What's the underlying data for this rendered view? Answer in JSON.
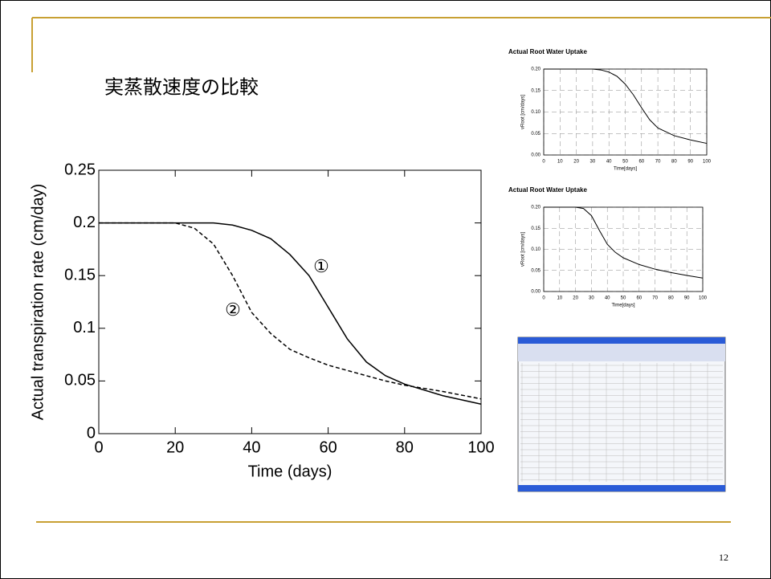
{
  "slide": {
    "title": "実蒸散速度の比較",
    "page_number": "12"
  },
  "chart_data": [
    {
      "type": "line",
      "ylabel": "Actual transpiration rate (cm/day)",
      "xlabel": "Time (days)",
      "annotations": [
        "①",
        "②"
      ],
      "xlim": [
        0,
        100
      ],
      "xticks": [
        0,
        20,
        40,
        60,
        80,
        100
      ],
      "ylim": [
        0,
        0.25
      ],
      "yticks": [
        0,
        0.05,
        0.1,
        0.15,
        0.2,
        0.25
      ],
      "grid": false,
      "x": [
        0,
        10,
        20,
        25,
        30,
        35,
        40,
        45,
        50,
        55,
        60,
        65,
        70,
        75,
        80,
        90,
        100
      ],
      "series": [
        {
          "color": "#000000",
          "line_style": "solid",
          "values": [
            0.2,
            0.2,
            0.2,
            0.2,
            0.2,
            0.198,
            0.193,
            0.185,
            0.17,
            0.15,
            0.12,
            0.09,
            0.068,
            0.055,
            0.047,
            0.036,
            0.028
          ]
        },
        {
          "color": "#000000",
          "line_style": "dashed",
          "values": [
            0.2,
            0.2,
            0.2,
            0.195,
            0.18,
            0.15,
            0.115,
            0.095,
            0.08,
            0.072,
            0.065,
            0.06,
            0.055,
            0.05,
            0.046,
            0.04,
            0.033
          ]
        }
      ]
    },
    {
      "type": "line",
      "title": "Actual Root Water Uptake",
      "ylabel": "vRoot [cm/days]",
      "xlabel": "Time[days]",
      "xlim": [
        0,
        100
      ],
      "xticks": [
        0,
        10,
        20,
        30,
        40,
        50,
        60,
        70,
        80,
        90,
        100
      ],
      "ylim": [
        0,
        0.2
      ],
      "yticks": [
        {
          "value": 0,
          "label": "0.00"
        },
        {
          "value": 0.05,
          "label": "0.05"
        },
        {
          "value": 0.1,
          "label": "0.10"
        },
        {
          "value": 0.15,
          "label": "0.15"
        },
        {
          "value": 0.2,
          "label": "0.20"
        }
      ],
      "grid": true,
      "x": [
        0,
        10,
        20,
        30,
        35,
        40,
        45,
        50,
        55,
        60,
        65,
        70,
        80,
        90,
        100
      ],
      "series": [
        {
          "color": "#000000",
          "line_style": "solid",
          "values": [
            0.2,
            0.2,
            0.2,
            0.2,
            0.198,
            0.193,
            0.183,
            0.165,
            0.14,
            0.11,
            0.082,
            0.063,
            0.045,
            0.035,
            0.027
          ]
        }
      ]
    },
    {
      "type": "line",
      "title": "Actual Root Water Uptake",
      "ylabel": "vRoot [cm/days]",
      "xlabel": "Time[days]",
      "xlim": [
        0,
        100
      ],
      "xticks": [
        0,
        10,
        20,
        30,
        40,
        50,
        60,
        70,
        80,
        90,
        100
      ],
      "ylim": [
        0,
        0.2
      ],
      "yticks": [
        {
          "value": 0,
          "label": "0.00"
        },
        {
          "value": 0.05,
          "label": "0.05"
        },
        {
          "value": 0.1,
          "label": "0.10"
        },
        {
          "value": 0.15,
          "label": "0.15"
        },
        {
          "value": 0.2,
          "label": "0.20"
        }
      ],
      "grid": true,
      "x": [
        0,
        10,
        20,
        25,
        30,
        35,
        40,
        45,
        50,
        60,
        70,
        80,
        90,
        100
      ],
      "series": [
        {
          "color": "#000000",
          "line_style": "solid",
          "values": [
            0.2,
            0.2,
            0.2,
            0.197,
            0.18,
            0.145,
            0.112,
            0.093,
            0.08,
            0.064,
            0.053,
            0.045,
            0.038,
            0.032
          ]
        }
      ]
    }
  ]
}
